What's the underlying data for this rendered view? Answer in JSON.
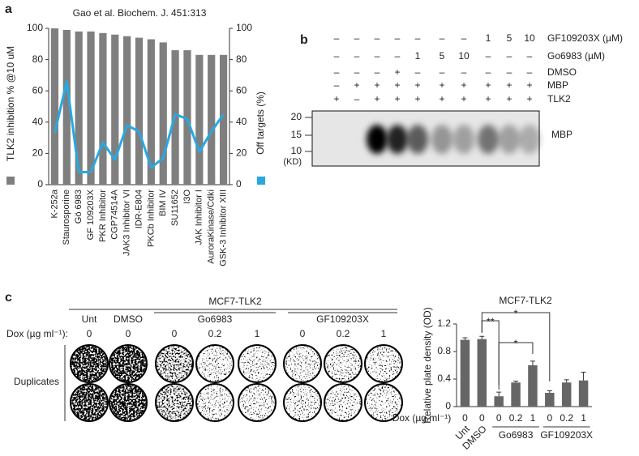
{
  "panel_labels": [
    "a",
    "b",
    "c"
  ],
  "chart_data": [
    {
      "type": "bar",
      "title": "Gao et al. Biochem. J. 451:313",
      "categories": [
        "K-252a",
        "Staurosporine",
        "Gö 6983",
        "GF 109203X",
        "PKR Inhibitor",
        "CGP74514A",
        "JAK3 Inhibitor VI",
        "IDR-E804",
        "PKCb Inhibitor",
        "BIM IV",
        "SU11652",
        "I3O",
        "JAK Inhibitor I",
        "AuroraKinase/Cdki",
        "GSK-3 Inhibitor XIII"
      ],
      "series": [
        {
          "name": "TLK2 inhibition % @10 uM",
          "type": "bar",
          "color": "#7f7f7f",
          "values": [
            100,
            99,
            98,
            98,
            97,
            96,
            95,
            94,
            93,
            91,
            86,
            86,
            83,
            83,
            83
          ]
        },
        {
          "name": "Off targets (%)",
          "type": "line",
          "axis": "y2",
          "color": "#29a8e0",
          "values": [
            33,
            66,
            8,
            8,
            27,
            16,
            38,
            34,
            11,
            17,
            45,
            42,
            21,
            34,
            45
          ]
        }
      ],
      "ylim": [
        0,
        100
      ],
      "yticks": [
        0,
        20,
        40,
        60,
        80,
        100
      ],
      "y2lim": [
        0,
        100
      ],
      "y2ticks": [
        0,
        20,
        40,
        60,
        80,
        100
      ]
    },
    {
      "type": "bar",
      "title": "MCF7-TLK2",
      "y_label": "Relative plate density (OD)",
      "x_label": "Dox (µg ml⁻¹)",
      "categories": [
        "0",
        "0",
        "0",
        "0.2",
        "1",
        "0",
        "0.2",
        "1"
      ],
      "group_labels": [
        "Unt",
        "DMSO",
        "Go6983",
        "GF109203X"
      ],
      "series": [
        {
          "color": "#666666",
          "values": [
            0.97,
            0.98,
            0.15,
            0.35,
            0.6,
            0.2,
            0.35,
            0.38
          ],
          "errors": [
            0.03,
            0.04,
            0.06,
            0.02,
            0.06,
            0.03,
            0.04,
            0.12
          ]
        }
      ],
      "annotations": [
        "**",
        "*",
        "*"
      ],
      "ylim": [
        0,
        1.2
      ],
      "yticks": [
        0,
        0.4,
        0.8,
        1.2
      ]
    }
  ],
  "panel_b": {
    "rows": [
      {
        "label": "GF109203X (µM)",
        "cells": [
          "–",
          "–",
          "–",
          "–",
          "–",
          "–",
          "–",
          "1",
          "5",
          "10"
        ]
      },
      {
        "label": "Go6983 (µM)",
        "cells": [
          "–",
          "–",
          "–",
          "–",
          "1",
          "5",
          "10",
          "–",
          "–",
          "–"
        ]
      },
      {
        "label": "DMSO",
        "cells": [
          "–",
          "–",
          "–",
          "+",
          "–",
          "–",
          "–",
          "–",
          "–",
          "–"
        ]
      },
      {
        "label": "MBP",
        "cells": [
          "–",
          "+",
          "+",
          "+",
          "+",
          "+",
          "+",
          "+",
          "+",
          "+"
        ]
      },
      {
        "label": "TLK2",
        "cells": [
          "+",
          "–",
          "+",
          "+",
          "+",
          "+",
          "+",
          "+",
          "+",
          "+"
        ]
      }
    ],
    "markers": [
      "20",
      "15",
      "10"
    ],
    "marker_unit": "(KD)",
    "band_label": "MBP"
  },
  "panel_c": {
    "header": "MCF7-TLK2",
    "groups": [
      "Unt",
      "DMSO",
      "Go6983",
      "GF109203X"
    ],
    "dox_label": "Dox (µg ml⁻¹):",
    "dox_values": [
      "0",
      "0",
      "0",
      "0.2",
      "1",
      "0",
      "0.2",
      "1"
    ],
    "row_label": "Duplicates"
  }
}
